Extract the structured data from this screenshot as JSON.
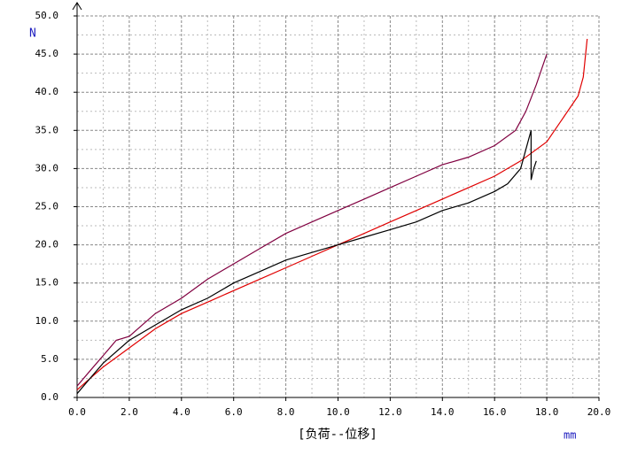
{
  "chart_data": {
    "type": "line",
    "title": "[负荷--位移]",
    "y_label": "N",
    "x_label": "mm",
    "xlim": [
      0,
      20
    ],
    "ylim": [
      0,
      50
    ],
    "grid": true,
    "xticks": [
      {
        "value": 0,
        "label": "0.0"
      },
      {
        "value": 2,
        "label": "2.0"
      },
      {
        "value": 4,
        "label": "4.0"
      },
      {
        "value": 6,
        "label": "6.0"
      },
      {
        "value": 8,
        "label": "8.0"
      },
      {
        "value": 10,
        "label": "10.0"
      },
      {
        "value": 12,
        "label": "12.0"
      },
      {
        "value": 14,
        "label": "14.0"
      },
      {
        "value": 16,
        "label": "16.0"
      },
      {
        "value": 18,
        "label": "18.0"
      },
      {
        "value": 20,
        "label": "20.0"
      }
    ],
    "yticks": [
      {
        "value": 0,
        "label": "0.0"
      },
      {
        "value": 5,
        "label": "5.0"
      },
      {
        "value": 10,
        "label": "10.0"
      },
      {
        "value": 15,
        "label": "15.0"
      },
      {
        "value": 20,
        "label": "20.0"
      },
      {
        "value": 25,
        "label": "25.0"
      },
      {
        "value": 30,
        "label": "30.0"
      },
      {
        "value": 35,
        "label": "35.0"
      },
      {
        "value": 40,
        "label": "40.0"
      },
      {
        "value": 45,
        "label": "45.0"
      },
      {
        "value": 50,
        "label": "50.0"
      }
    ],
    "xticks_minor": [
      1,
      3,
      5,
      7,
      9,
      11,
      13,
      15,
      17,
      19
    ],
    "yticks_minor": [
      2.5,
      7.5,
      12.5,
      17.5,
      22.5,
      27.5,
      32.5,
      37.5,
      42.5,
      47.5
    ],
    "series": [
      {
        "color": "#800040",
        "x": [
          0,
          0.5,
          1,
          1.5,
          2,
          2.5,
          3,
          4,
          5,
          6,
          7,
          8,
          9,
          10,
          11,
          12,
          13,
          14,
          15,
          16,
          16.8,
          17.2,
          17.6,
          18
        ],
        "values": [
          1.5,
          3.5,
          5.5,
          7.5,
          8,
          9.5,
          11,
          13,
          15.5,
          17.5,
          19.5,
          21.5,
          23,
          24.5,
          26,
          27.5,
          29,
          30.5,
          31.5,
          33,
          35,
          37.5,
          41,
          45
        ]
      },
      {
        "color": "#e00000",
        "x": [
          0,
          0.5,
          1,
          2,
          3,
          4,
          5,
          6,
          7,
          8,
          9,
          10,
          11,
          12,
          13,
          14,
          15,
          16,
          17,
          18,
          18.5,
          19,
          19.2,
          19.4,
          19.55
        ],
        "values": [
          1,
          2.5,
          4,
          6.5,
          9,
          11,
          12.5,
          14,
          15.5,
          17,
          18.5,
          20,
          21.5,
          23,
          24.5,
          26,
          27.5,
          29,
          31,
          33.5,
          36,
          38.5,
          39.5,
          42,
          47
        ]
      },
      {
        "color": "#000000",
        "x": [
          0,
          0.5,
          1,
          2,
          3,
          4,
          5,
          6,
          7,
          8,
          9,
          10,
          11,
          12,
          13,
          14,
          15,
          16,
          16.5,
          17,
          17.4,
          17.4,
          17.5,
          17.6
        ],
        "values": [
          0.5,
          2.5,
          4.5,
          7.5,
          9.5,
          11.5,
          13,
          15,
          16.5,
          18,
          19,
          20,
          21,
          22,
          23,
          24.5,
          25.5,
          27,
          28,
          30,
          35,
          28.5,
          30,
          31
        ]
      }
    ]
  }
}
